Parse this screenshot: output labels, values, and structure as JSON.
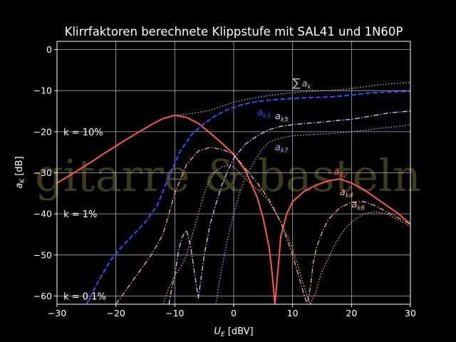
{
  "chart_data": {
    "type": "line",
    "title": "Klirrfaktoren berechnete Klippstufe mit SAL41 und 1N60P",
    "xlabel_main": "U",
    "xlabel_sub": "E",
    "xlabel_unit": " [dBV]",
    "ylabel_main": "a",
    "ylabel_sub": "K",
    "ylabel_unit": " [dB]",
    "xlim": [
      -30,
      30
    ],
    "ylim": [
      -62,
      2
    ],
    "xticks": [
      -30,
      -20,
      -10,
      0,
      10,
      20,
      30
    ],
    "yticks": [
      0,
      -10,
      -20,
      -30,
      -40,
      -50,
      -60
    ],
    "xtick_labels": [
      "−30",
      "−20",
      "−10",
      "0",
      "10",
      "20",
      "30"
    ],
    "ytick_labels": [
      "0",
      "−10",
      "−20",
      "−30",
      "−40",
      "−50",
      "−60"
    ],
    "grid": true,
    "watermark": "gitarre & basteln",
    "reference_lines": [
      {
        "label": "k = 10%",
        "y": -20
      },
      {
        "label": "k = 1%",
        "y": -40
      },
      {
        "label": "k = 0.1%",
        "y": -60
      }
    ],
    "series": [
      {
        "name": "Σ a_k",
        "label_main": "∑",
        "label_sub": "a",
        "label_sub2": "k",
        "color": "#bbbbbb",
        "style": "dotted",
        "label_at": [
          10,
          -9
        ],
        "x": [
          -10,
          -8,
          -6,
          -4,
          -2,
          0,
          2,
          4,
          6,
          8,
          10,
          12,
          14,
          16,
          18,
          20,
          22,
          24,
          26,
          28,
          30
        ],
        "y": [
          -16,
          -15.7,
          -15.3,
          -14.8,
          -13.8,
          -12.8,
          -12.2,
          -11.6,
          -11.2,
          -10.8,
          -10.5,
          -10.3,
          -10.1,
          -10.0,
          -9.8,
          -9.5,
          -9.1,
          -8.7,
          -8.4,
          -8.2,
          -8.0
        ]
      },
      {
        "name": "a_k2",
        "label_main": "a",
        "label_sub": "k2",
        "color": "#ff5555",
        "style": "solid",
        "label_at": [
          17,
          -30.5
        ],
        "x": [
          -30,
          -28,
          -26,
          -24,
          -22,
          -20,
          -18,
          -16,
          -14,
          -12,
          -10,
          -8,
          -6,
          -4,
          -2,
          0,
          2,
          4,
          5,
          6,
          6.5,
          7,
          7.5,
          8,
          9,
          10,
          12,
          14,
          16,
          18,
          20,
          22,
          24,
          26,
          28,
          30
        ],
        "y": [
          -32.5,
          -30.8,
          -29,
          -27.2,
          -25.3,
          -23.5,
          -21.7,
          -20,
          -18.3,
          -16.8,
          -16,
          -16.5,
          -18,
          -20.3,
          -22.8,
          -25.5,
          -29.5,
          -36,
          -41,
          -48,
          -54,
          -62,
          -54,
          -45.5,
          -40,
          -37,
          -34.5,
          -33,
          -32,
          -31.5,
          -32.5,
          -34,
          -36,
          -38,
          -40,
          -42.5
        ]
      },
      {
        "name": "a_k3",
        "label_main": "a",
        "label_sub": "k3",
        "color": "#4444ff",
        "style": "dashed",
        "label_at": [
          4,
          -16
        ],
        "x": [
          -25,
          -23,
          -21,
          -19,
          -17,
          -15,
          -13,
          -11,
          -9,
          -7,
          -5,
          -3,
          -1,
          1,
          3,
          5,
          7,
          9,
          11,
          13,
          15,
          17,
          19,
          21,
          23,
          25,
          27,
          30
        ],
        "y": [
          -62,
          -56.5,
          -51.5,
          -48,
          -45,
          -42,
          -38,
          -31,
          -24.5,
          -20.5,
          -18,
          -16,
          -14.6,
          -13.6,
          -12.9,
          -12.5,
          -12.2,
          -12,
          -11.8,
          -11.7,
          -11.6,
          -11.5,
          -11.2,
          -10.9,
          -10.6,
          -10.4,
          -10.3,
          -10.2
        ]
      },
      {
        "name": "a_k4",
        "label_main": "a",
        "label_sub": "k4",
        "color": "#ffaa99",
        "style": "dashdot",
        "label_at": [
          18,
          -35.5
        ],
        "x": [
          -20,
          -18,
          -16,
          -14,
          -12,
          -10,
          -8,
          -6,
          -4,
          -2,
          0,
          2,
          4,
          6,
          8,
          10,
          11,
          12,
          12.5,
          13,
          13.5,
          14,
          15,
          16,
          18,
          20,
          22,
          24,
          26,
          28,
          30
        ],
        "y": [
          -62,
          -58,
          -54,
          -50,
          -45,
          -35,
          -28,
          -24.7,
          -23.8,
          -24.3,
          -25.5,
          -29,
          -32.5,
          -36.5,
          -42,
          -50,
          -55,
          -60,
          -62,
          -58,
          -52,
          -48.5,
          -44.5,
          -41.5,
          -38.5,
          -37.2,
          -37,
          -38,
          -39.5,
          -41,
          -42.5
        ]
      },
      {
        "name": "a_k5",
        "label_main": "a",
        "label_sub": "k5",
        "color": "#ccccff",
        "style": "dashdot",
        "label_at": [
          7,
          -17
        ],
        "x": [
          -11,
          -10.5,
          -10,
          -9.3,
          -8.7,
          -8,
          -7.3,
          -6.5,
          -6,
          -5,
          -4,
          -3,
          -2,
          -1,
          0,
          2,
          4,
          6,
          8,
          10,
          12,
          14,
          16,
          18,
          20,
          22,
          24,
          26,
          28,
          30
        ],
        "y": [
          -62,
          -58,
          -55,
          -48.5,
          -45.5,
          -44,
          -48,
          -56,
          -60.5,
          -50,
          -42.5,
          -37.5,
          -33,
          -29.5,
          -26.5,
          -23,
          -21,
          -19.5,
          -18.7,
          -18.3,
          -18,
          -17.8,
          -17.5,
          -17.2,
          -17,
          -16.5,
          -16,
          -15.5,
          -15.2,
          -15
        ]
      },
      {
        "name": "a_k6",
        "label_main": "a",
        "label_sub": "k6",
        "color": "#ffaa99",
        "style": "dotted",
        "label_at": [
          20,
          -38.5
        ],
        "x": [
          -12,
          -11,
          -10,
          -9,
          -8,
          -7,
          -6,
          -5,
          -4,
          -3,
          -2,
          -1,
          0,
          1,
          2,
          4,
          6,
          8,
          9,
          10,
          11,
          12,
          13,
          14,
          14.5,
          15,
          16,
          17,
          18,
          19,
          20,
          22,
          24,
          26,
          28,
          30
        ],
        "y": [
          -62,
          -58,
          -55,
          -53,
          -50,
          -45,
          -40,
          -35,
          -31.5,
          -29.5,
          -28.5,
          -28.3,
          -28.5,
          -30,
          -31.5,
          -34,
          -37,
          -42,
          -45,
          -48.5,
          -53,
          -58,
          -62,
          -59,
          -56,
          -54,
          -51,
          -48,
          -45.5,
          -43.5,
          -42,
          -40,
          -39.5,
          -40,
          -41.5,
          -43
        ]
      },
      {
        "name": "a_k7",
        "label_main": "a",
        "label_sub": "k7",
        "color": "#aaaaff",
        "style": "dotted",
        "label_at": [
          7,
          -24.5
        ],
        "x": [
          -3,
          -2.5,
          -2,
          -1,
          0,
          1,
          2,
          3,
          4,
          5,
          6,
          8,
          10,
          12,
          14,
          16,
          18,
          20,
          22,
          24,
          26,
          28,
          30
        ],
        "y": [
          -62,
          -57,
          -53,
          -46,
          -40,
          -35,
          -31,
          -28.5,
          -26,
          -24,
          -22.5,
          -21.5,
          -21,
          -20.8,
          -20.6,
          -20.5,
          -20.3,
          -20,
          -19.7,
          -19.3,
          -19,
          -18.7,
          -18.3
        ]
      }
    ]
  }
}
